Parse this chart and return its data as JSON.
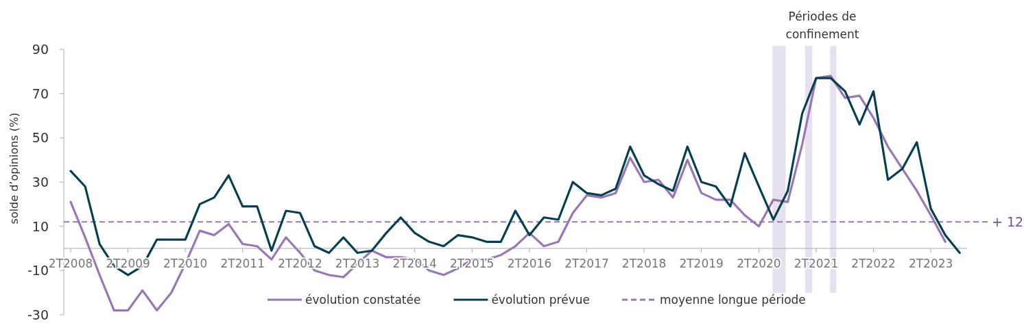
{
  "chart_data": {
    "type": "line",
    "ylabel": "solde d’opinions (%)",
    "x": [
      "2008-05-15",
      "2008-08-15",
      "2008-11-15",
      "2009-02-15",
      "2009-05-15",
      "2009-08-15",
      "2009-11-15",
      "2010-02-15",
      "2010-05-15",
      "2010-08-15",
      "2010-11-15",
      "2011-02-15",
      "2011-05-15",
      "2011-08-15",
      "2011-11-15",
      "2012-02-15",
      "2012-05-15",
      "2012-08-15",
      "2012-11-15",
      "2013-02-15",
      "2013-05-15",
      "2013-08-15",
      "2013-11-15",
      "2014-02-15",
      "2014-05-15",
      "2014-08-15",
      "2014-11-15",
      "2015-02-15",
      "2015-05-15",
      "2015-08-15",
      "2015-11-15",
      "2016-02-15",
      "2016-05-15",
      "2016-08-15",
      "2016-11-15",
      "2017-02-15",
      "2017-05-15",
      "2017-08-15",
      "2017-11-15",
      "2018-02-15",
      "2018-05-15",
      "2018-08-15",
      "2018-11-15",
      "2019-02-15",
      "2019-05-15",
      "2019-08-15",
      "2019-11-15",
      "2020-02-15",
      "2020-05-15",
      "2020-08-15",
      "2020-11-15",
      "2021-02-15",
      "2021-05-15",
      "2021-08-15",
      "2021-11-15",
      "2022-02-15",
      "2022-05-15",
      "2022-08-15",
      "2022-11-15",
      "2023-02-15",
      "2023-05-15",
      "2023-08-15",
      "2023-11-15"
    ],
    "series": [
      {
        "name": "évolution constatée",
        "color": "#9777b5",
        "values": [
          21,
          5,
          -12,
          -28,
          -28,
          -19,
          -28,
          -20,
          -7,
          8,
          6,
          11,
          2,
          1,
          -5,
          5,
          -2,
          -10,
          -12,
          -13,
          -7,
          -1,
          -4,
          -4,
          -5,
          -10,
          -12,
          -9,
          -5,
          -5,
          -3,
          1,
          7,
          1,
          3,
          16,
          24,
          23,
          25,
          41,
          30,
          31,
          23,
          40,
          25,
          22,
          22,
          15,
          10,
          22,
          21,
          47,
          77,
          78,
          68,
          69,
          59,
          46,
          36,
          26,
          15,
          3,
          null
        ]
      },
      {
        "name": "évolution prévue",
        "color": "#063f4f",
        "values": [
          35,
          28,
          2,
          -8,
          -12,
          -8,
          4,
          4,
          4,
          20,
          23,
          33,
          19,
          19,
          -1,
          17,
          16,
          1,
          -2,
          5,
          -2,
          -1,
          7,
          14,
          7,
          3,
          1,
          6,
          5,
          3,
          3,
          17,
          6,
          14,
          13,
          30,
          25,
          24,
          27,
          46,
          33,
          29,
          26,
          46,
          30,
          28,
          19,
          43,
          28,
          13,
          26,
          61,
          77,
          77,
          71,
          56,
          71,
          31,
          36,
          48,
          18,
          6,
          -2
        ]
      }
    ],
    "xlim": [
      "2008-04-01",
      "2024-01-01"
    ],
    "xticks": [
      {
        "value": "2008-05-15",
        "label": "2T2008"
      },
      {
        "value": "2009-05-15",
        "label": "2T2009"
      },
      {
        "value": "2010-05-15",
        "label": "2T2010"
      },
      {
        "value": "2011-05-15",
        "label": "2T2011"
      },
      {
        "value": "2012-05-15",
        "label": "2T2012"
      },
      {
        "value": "2013-05-15",
        "label": "2T2013"
      },
      {
        "value": "2014-05-15",
        "label": "2T2014"
      },
      {
        "value": "2015-05-15",
        "label": "2T2015"
      },
      {
        "value": "2016-05-15",
        "label": "2T2016"
      },
      {
        "value": "2017-05-15",
        "label": "2T2017"
      },
      {
        "value": "2018-05-15",
        "label": "2T2018"
      },
      {
        "value": "2019-05-15",
        "label": "2T2019"
      },
      {
        "value": "2020-05-15",
        "label": "2T2020"
      },
      {
        "value": "2021-05-15",
        "label": "2T2021"
      },
      {
        "value": "2022-05-15",
        "label": "2T2022"
      },
      {
        "value": "2023-05-15",
        "label": "2T2023"
      }
    ],
    "ylim": [
      -30,
      90
    ],
    "yticks": [
      -30,
      -10,
      10,
      30,
      50,
      70,
      90
    ],
    "ref_lines": [
      {
        "axis": "y",
        "value": 12,
        "label": "moyenne longue période",
        "color": "#9777b5",
        "line_style": "dashed"
      }
    ],
    "bands": [
      {
        "axis": "x",
        "from": "2020-08-10",
        "to": "2020-11-01",
        "color": "#e7e0ef"
      },
      {
        "axis": "x",
        "from": "2021-03-05",
        "to": "2021-04-20",
        "color": "#e7e0ef",
        "label": "Périodes de confinement"
      },
      {
        "axis": "x",
        "from": "2021-08-12",
        "to": "2021-09-20",
        "color": "#e7e0ef"
      }
    ],
    "annotations": [
      "+ 12"
    ],
    "legend": "bottom",
    "grid": false,
    "marker": "none",
    "line_style": "solid"
  }
}
